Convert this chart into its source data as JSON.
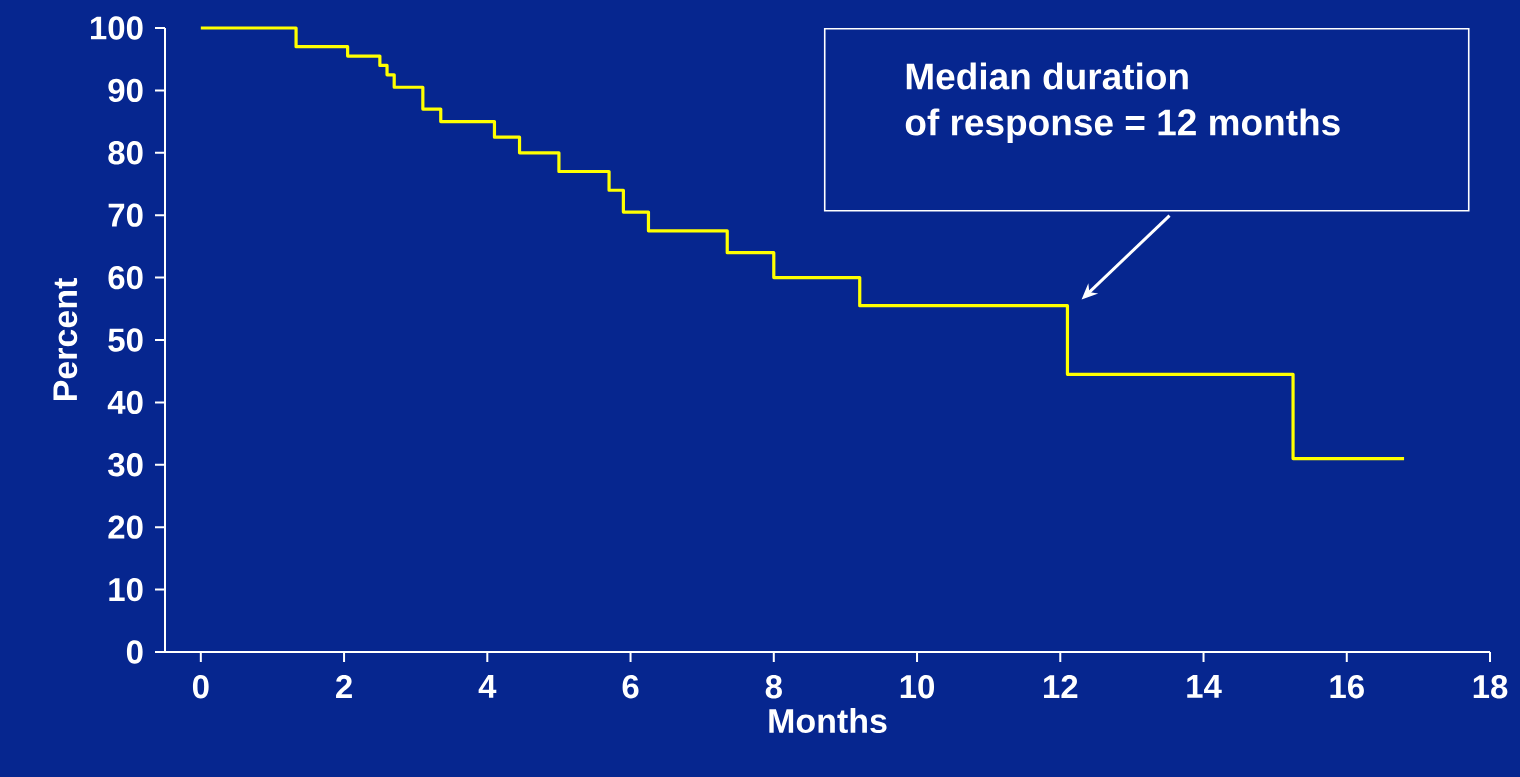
{
  "chart_data": {
    "type": "step",
    "xlabel": "Months",
    "ylabel": "Percent",
    "x": [
      0,
      1.33,
      2.05,
      2.5,
      2.6,
      2.7,
      3.1,
      3.35,
      4.1,
      4.45,
      5.0,
      5.7,
      5.9,
      6.25,
      7.35,
      8.0,
      9.2,
      12.1,
      15.25,
      16.8
    ],
    "values": [
      100,
      97,
      95.5,
      94,
      92.5,
      90.5,
      87,
      85,
      82.5,
      80,
      77,
      74,
      70.5,
      67.5,
      64,
      60,
      55.5,
      44.5,
      31,
      31
    ],
    "color": "#ffff00",
    "xlim": [
      -0.5,
      18
    ],
    "ylim": [
      0,
      100
    ],
    "xticks": [
      0,
      2,
      4,
      6,
      8,
      10,
      12,
      14,
      16,
      18
    ],
    "yticks": [
      0,
      10,
      20,
      30,
      40,
      50,
      60,
      70,
      80,
      90,
      100
    ],
    "annotations": [
      "Median duration",
      "of response = 12 months"
    ]
  }
}
